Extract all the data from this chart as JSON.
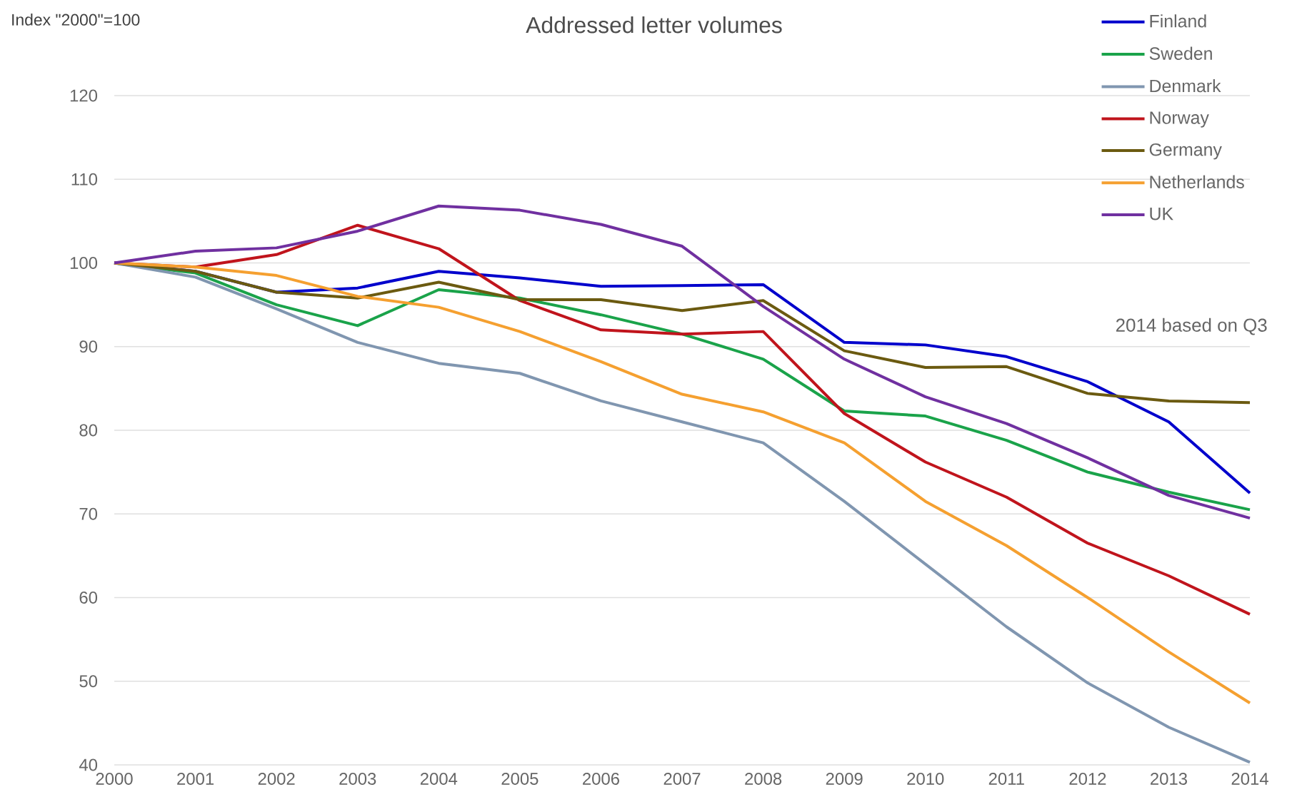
{
  "chart_data": {
    "type": "line",
    "title": "Addressed letter volumes",
    "ylabel": "Index \"2000\"=100",
    "x": [
      2000,
      2001,
      2002,
      2003,
      2004,
      2005,
      2006,
      2007,
      2008,
      2009,
      2010,
      2011,
      2012,
      2013,
      2014
    ],
    "series": [
      {
        "name": "Finland",
        "color": "#0000cc",
        "values": [
          100,
          99,
          96.5,
          97,
          99,
          98.2,
          97.2,
          97.3,
          97.4,
          90.5,
          90.2,
          88.8,
          85.8,
          81,
          72.5
        ]
      },
      {
        "name": "Sweden",
        "color": "#1aa34a",
        "values": [
          100,
          98.8,
          95,
          92.5,
          96.8,
          95.8,
          93.8,
          91.5,
          88.5,
          82.3,
          81.7,
          78.8,
          75,
          72.6,
          70.5
        ]
      },
      {
        "name": "Denmark",
        "color": "#8096b0",
        "values": [
          100,
          98.3,
          94.5,
          90.5,
          88,
          86.8,
          83.5,
          81,
          78.5,
          71.5,
          64,
          56.5,
          49.8,
          44.5,
          40.3
        ]
      },
      {
        "name": "Norway",
        "color": "#c0141c",
        "values": [
          100,
          99.5,
          101,
          104.5,
          101.7,
          95.5,
          92,
          91.5,
          91.8,
          82,
          76.2,
          72,
          66.5,
          62.6,
          58
        ]
      },
      {
        "name": "Germany",
        "color": "#6b5a10",
        "values": [
          100,
          99,
          96.5,
          95.8,
          97.7,
          95.6,
          95.6,
          94.3,
          95.5,
          89.5,
          87.5,
          87.6,
          84.4,
          83.5,
          83.3
        ]
      },
      {
        "name": "Netherlands",
        "color": "#f5a030",
        "values": [
          100,
          99.5,
          98.5,
          96,
          94.7,
          91.8,
          88.2,
          84.3,
          82.2,
          78.5,
          71.5,
          66.2,
          60,
          53.5,
          47.4
        ]
      },
      {
        "name": "UK",
        "color": "#7030a0",
        "values": [
          100,
          101.4,
          101.8,
          103.8,
          106.8,
          106.3,
          104.6,
          102,
          94.8,
          88.5,
          84,
          80.8,
          76.7,
          72.2,
          69.5
        ]
      }
    ],
    "annotations": [
      "2014 based on Q3"
    ],
    "xlim": [
      2000,
      2014
    ],
    "xticks": [
      2000,
      2001,
      2002,
      2003,
      2004,
      2005,
      2006,
      2007,
      2008,
      2009,
      2010,
      2011,
      2012,
      2013,
      2014
    ],
    "ylim": [
      40,
      120
    ],
    "yticks": [
      40,
      50,
      60,
      70,
      80,
      90,
      100,
      110,
      120
    ],
    "grid": "y",
    "legend": "top right",
    "marker": "none",
    "line_style": "solid"
  }
}
